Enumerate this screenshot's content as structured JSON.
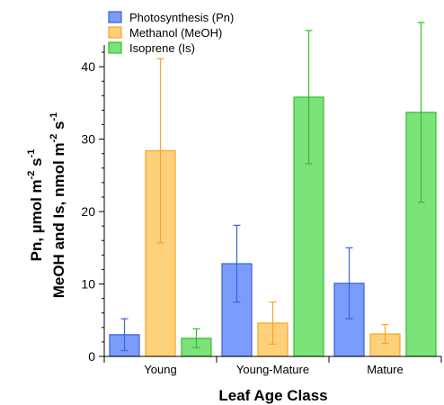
{
  "chart_data": {
    "type": "bar",
    "categories": [
      "Young",
      "Young-Mature",
      "Mature"
    ],
    "series": [
      {
        "name": "Photosynthesis (Pn)",
        "values": [
          3.0,
          12.8,
          10.1
        ],
        "errors": [
          2.2,
          5.3,
          4.9
        ],
        "color": "#7b9cfa",
        "stroke": "#3a62e0"
      },
      {
        "name": "Methanol (MeOH)",
        "values": [
          28.4,
          4.6,
          3.1
        ],
        "errors": [
          12.7,
          2.9,
          1.3
        ],
        "color": "#fdd07a",
        "stroke": "#f5a623"
      },
      {
        "name": "Isoprene (Is)",
        "values": [
          2.5,
          35.8,
          33.7
        ],
        "errors": [
          1.3,
          9.2,
          12.4
        ],
        "color": "#7de27a",
        "stroke": "#2ec12a"
      }
    ],
    "xlabel": "Leaf Age Class",
    "ylabel": {
      "line1_main": "Pn, µmol m",
      "line1_sup1": "-2",
      "line1_mid": " s",
      "line1_sup2": "-1",
      "line2_main": "MeOH and Is, nmol m",
      "line2_sup1": "-2",
      "line2_mid": " s",
      "line2_sup2": "-1"
    },
    "ylim": [
      0,
      43
    ],
    "yticks": [
      0,
      10,
      20,
      30,
      40
    ],
    "legend_position": "top-left",
    "grid": false
  }
}
